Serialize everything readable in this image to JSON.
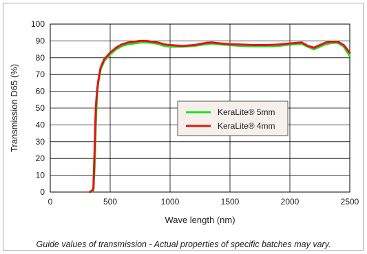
{
  "chart_data": {
    "type": "line",
    "xlabel": "Wave length (nm)",
    "ylabel": "Transmission D65 (%)",
    "xlim": [
      0,
      2500
    ],
    "ylim": [
      0,
      100
    ],
    "xticks": [
      0,
      500,
      1000,
      1500,
      2000,
      2500
    ],
    "yticks": [
      0,
      10,
      20,
      30,
      40,
      50,
      60,
      70,
      80,
      90,
      100
    ],
    "grid": true,
    "legend_position": "center-right",
    "series": [
      {
        "name": "KeraLite® 5mm",
        "color": "#22dd22",
        "x": [
          340,
          360,
          370,
          380,
          390,
          400,
          420,
          450,
          500,
          550,
          600,
          650,
          700,
          750,
          800,
          850,
          900,
          950,
          1000,
          1100,
          1200,
          1300,
          1350,
          1400,
          1500,
          1600,
          1700,
          1800,
          1900,
          2000,
          2100,
          2150,
          2200,
          2250,
          2300,
          2350,
          2400,
          2450,
          2500
        ],
        "y": [
          0,
          1,
          15,
          40,
          58,
          65,
          73,
          78,
          82,
          85,
          87,
          88,
          88.5,
          89,
          89,
          88.8,
          88.2,
          87,
          86.5,
          86.5,
          87,
          88,
          88.5,
          88,
          87.5,
          87,
          86.8,
          86.8,
          87,
          87.8,
          88.2,
          86.5,
          85,
          86.5,
          88,
          88.8,
          88.8,
          86.5,
          81
        ]
      },
      {
        "name": "KeraLite® 4mm",
        "color": "#e01515",
        "x": [
          330,
          350,
          360,
          370,
          380,
          390,
          400,
          420,
          450,
          500,
          550,
          600,
          650,
          700,
          750,
          800,
          850,
          900,
          950,
          1000,
          1100,
          1200,
          1300,
          1350,
          1400,
          1500,
          1600,
          1700,
          1800,
          1900,
          2000,
          2100,
          2150,
          2200,
          2250,
          2300,
          2350,
          2400,
          2450,
          2500
        ],
        "y": [
          0,
          1,
          2,
          25,
          50,
          60,
          66,
          74,
          79,
          83,
          86,
          88,
          89,
          89.5,
          90,
          90,
          89.5,
          89,
          88,
          87.5,
          87,
          87.5,
          88.8,
          89,
          88.6,
          88,
          87.8,
          87.5,
          87.5,
          87.8,
          88.5,
          89,
          87,
          86,
          87.5,
          89,
          89.5,
          89.5,
          87.5,
          83
        ]
      }
    ]
  },
  "caption": "Guide values of transmission - Actual properties of specific batches may vary."
}
